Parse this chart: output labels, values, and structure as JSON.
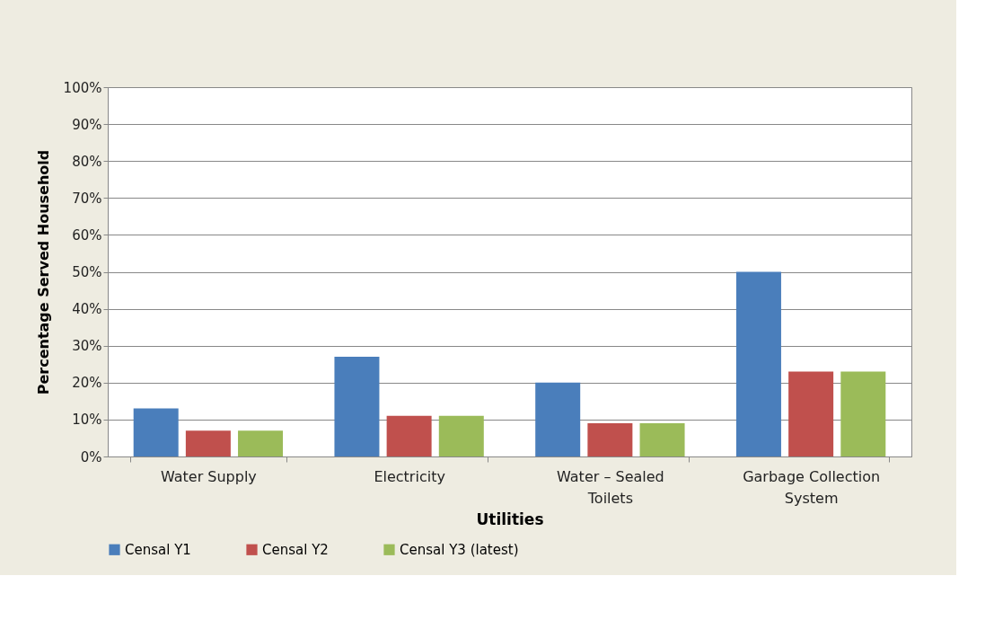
{
  "chart_data": {
    "type": "bar",
    "xlabel": "Utilities",
    "ylabel": "Percentage  Served  Household",
    "categories": [
      "Water Supply",
      "Electricity",
      "Water – Sealed Toilets",
      "Garbage Collection System"
    ],
    "series": [
      {
        "name": "Censal Y1",
        "color": "#4a7ebb",
        "values": [
          13,
          27,
          20,
          50
        ]
      },
      {
        "name": "Censal Y2",
        "color": "#c0504d",
        "values": [
          7,
          11,
          9,
          23
        ]
      },
      {
        "name": "Censal Y3 (latest)",
        "color": "#9bbb59",
        "values": [
          7,
          11,
          9,
          23
        ]
      }
    ],
    "ylim": [
      0,
      100
    ],
    "yticks": [
      {
        "value": 0,
        "label": "0%"
      },
      {
        "value": 10,
        "label": "10%"
      },
      {
        "value": 20,
        "label": "20%"
      },
      {
        "value": 30,
        "label": "30%"
      },
      {
        "value": 40,
        "label": "40%"
      },
      {
        "value": 50,
        "label": "50%"
      },
      {
        "value": 60,
        "label": "60%"
      },
      {
        "value": 70,
        "label": "70%"
      },
      {
        "value": 80,
        "label": "80%"
      },
      {
        "value": 90,
        "label": "90%"
      },
      {
        "value": 100,
        "label": "100%"
      }
    ],
    "grid": "y",
    "legend": "bottom"
  }
}
